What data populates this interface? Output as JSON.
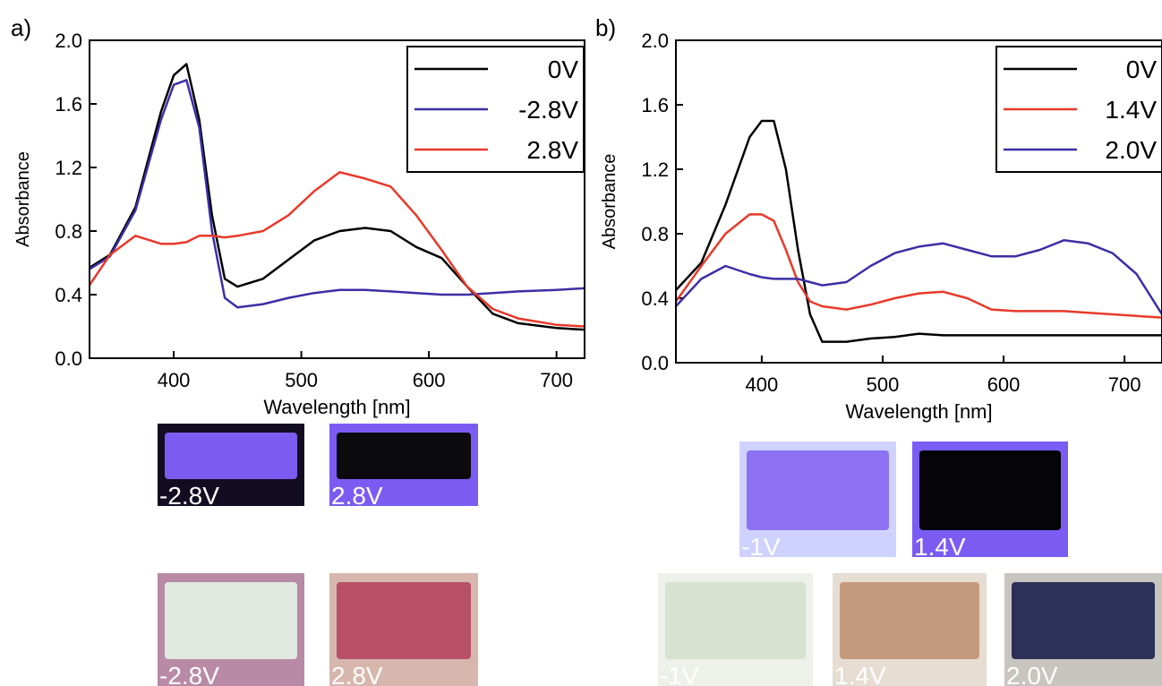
{
  "chart_data": [
    {
      "type": "line",
      "panel_label": "a)",
      "x_label": "Wavelength [nm]",
      "y_label": "Absorbance",
      "x": [
        334,
        350,
        370,
        390,
        400,
        410,
        420,
        430,
        440,
        450,
        470,
        490,
        510,
        530,
        550,
        570,
        590,
        610,
        630,
        650,
        670,
        700,
        722
      ],
      "series": [
        {
          "name": "0V",
          "color": "#000000",
          "values": [
            0.57,
            0.65,
            0.95,
            1.55,
            1.78,
            1.85,
            1.5,
            0.9,
            0.5,
            0.45,
            0.5,
            0.62,
            0.74,
            0.8,
            0.82,
            0.8,
            0.7,
            0.63,
            0.45,
            0.28,
            0.22,
            0.19,
            0.18
          ]
        },
        {
          "name": "-2.8V",
          "color": "#3b2fa6",
          "values": [
            0.56,
            0.64,
            0.93,
            1.5,
            1.72,
            1.75,
            1.45,
            0.8,
            0.38,
            0.32,
            0.34,
            0.38,
            0.41,
            0.43,
            0.43,
            0.42,
            0.41,
            0.4,
            0.4,
            0.41,
            0.42,
            0.43,
            0.44
          ]
        },
        {
          "name": "2.8V",
          "color": "#e8392a",
          "values": [
            0.46,
            0.65,
            0.77,
            0.72,
            0.72,
            0.73,
            0.77,
            0.77,
            0.76,
            0.77,
            0.8,
            0.9,
            1.05,
            1.17,
            1.13,
            1.08,
            0.9,
            0.68,
            0.45,
            0.31,
            0.25,
            0.21,
            0.2
          ]
        }
      ],
      "xlim": [
        334,
        722
      ],
      "xticks": [
        400,
        500,
        600,
        700
      ],
      "ylim": [
        0,
        2
      ],
      "yticks": [
        {
          "value": 0,
          "label": "0.0"
        },
        0.4,
        0.8,
        1.2,
        1.6,
        {
          "value": 2,
          "label": "2.0"
        }
      ],
      "legend": "upper right",
      "photos": [
        "-2.8V",
        "2.8V",
        "-2.8V",
        "2.8V"
      ]
    },
    {
      "type": "line",
      "panel_label": "b)",
      "x_label": "Wavelength [nm]",
      "y_label": "Absorbance",
      "x": [
        329,
        350,
        370,
        390,
        400,
        410,
        420,
        430,
        440,
        450,
        470,
        490,
        510,
        530,
        550,
        570,
        590,
        610,
        630,
        650,
        670,
        690,
        710,
        731
      ],
      "series": [
        {
          "name": "0V",
          "color": "#000000",
          "values": [
            0.45,
            0.62,
            0.98,
            1.4,
            1.5,
            1.5,
            1.2,
            0.7,
            0.3,
            0.13,
            0.13,
            0.15,
            0.16,
            0.18,
            0.17,
            0.17,
            0.17,
            0.17,
            0.17,
            0.17,
            0.17,
            0.17,
            0.17,
            0.17
          ]
        },
        {
          "name": "1.4V",
          "color": "#e8392a",
          "values": [
            0.38,
            0.6,
            0.8,
            0.92,
            0.92,
            0.88,
            0.7,
            0.5,
            0.38,
            0.35,
            0.33,
            0.36,
            0.4,
            0.43,
            0.44,
            0.4,
            0.33,
            0.32,
            0.32,
            0.32,
            0.31,
            0.3,
            0.29,
            0.28
          ]
        },
        {
          "name": "2.0V",
          "color": "#3b2fa6",
          "values": [
            0.35,
            0.52,
            0.6,
            0.55,
            0.53,
            0.52,
            0.52,
            0.52,
            0.5,
            0.48,
            0.5,
            0.6,
            0.68,
            0.72,
            0.74,
            0.7,
            0.66,
            0.66,
            0.7,
            0.76,
            0.74,
            0.68,
            0.55,
            0.3
          ]
        }
      ],
      "xlim": [
        329,
        731
      ],
      "xticks": [
        400,
        500,
        600,
        700
      ],
      "ylim": [
        0,
        2
      ],
      "yticks": [
        {
          "value": 0,
          "label": "0.0"
        },
        0.4,
        0.8,
        1.2,
        1.6,
        {
          "value": 2,
          "label": "2.0"
        }
      ],
      "legend": "upper right",
      "photos": [
        "-1V",
        "1.4V",
        "-1V",
        "1.4V",
        "2.0V"
      ]
    }
  ]
}
